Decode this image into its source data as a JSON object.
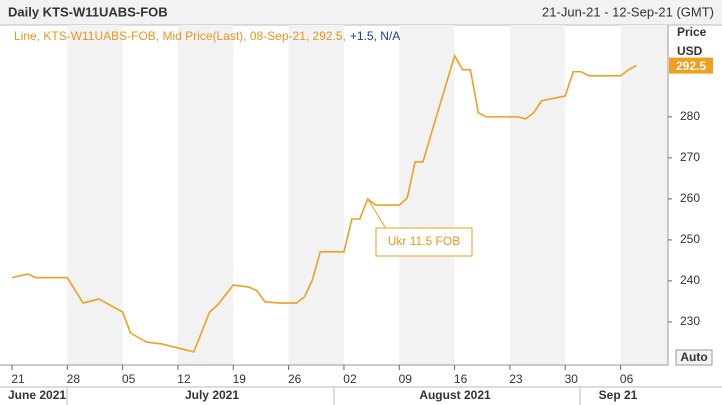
{
  "chart_data": {
    "type": "line",
    "title": "Daily KTS-W11UABS-FOB",
    "date_range": "21-Jun-21 - 12-Sep-21 (GMT)",
    "legend_text": "Line, KTS-W11UABS-FOB, Mid Price(Last), 08-Sep-21, 292.5,",
    "legend_change": "+1.5, N/A",
    "y_axis_label": "Price",
    "y_axis_unit": "USD",
    "annotation": "Ukr 11.5 FOB",
    "auto_button": "Auto",
    "x": [
      "2021-06-21",
      "2021-06-23",
      "2021-06-24",
      "2021-06-28",
      "2021-06-30",
      "2021-07-02",
      "2021-07-05",
      "2021-07-06",
      "2021-07-08",
      "2021-07-10",
      "2021-07-14",
      "2021-07-16",
      "2021-07-17",
      "2021-07-19",
      "2021-07-21",
      "2021-07-22",
      "2021-07-23",
      "2021-07-25",
      "2021-07-27",
      "2021-07-28",
      "2021-07-29",
      "2021-07-30",
      "2021-08-02",
      "2021-08-03",
      "2021-08-04",
      "2021-08-05",
      "2021-08-06",
      "2021-08-09",
      "2021-08-10",
      "2021-08-11",
      "2021-08-12",
      "2021-08-13",
      "2021-08-16",
      "2021-08-17",
      "2021-08-18",
      "2021-08-19",
      "2021-08-20",
      "2021-08-24",
      "2021-08-25",
      "2021-08-26",
      "2021-08-27",
      "2021-08-30",
      "2021-08-31",
      "2021-09-01",
      "2021-09-02",
      "2021-09-06",
      "2021-09-07",
      "2021-09-08"
    ],
    "series": [
      {
        "name": "KTS-W11UABS-FOB",
        "color": "#f0a01e",
        "values": [
          240.8,
          241.7,
          240.8,
          240.8,
          234.6,
          235.6,
          232.4,
          227.3,
          225.1,
          224.6,
          222.7,
          232.4,
          234.1,
          239.0,
          238.5,
          237.6,
          234.9,
          234.6,
          234.6,
          236.1,
          240.2,
          247.1,
          247.1,
          255.1,
          255.1,
          260.0,
          258.5,
          258.5,
          260.2,
          269.0,
          269.0,
          275.6,
          294.9,
          291.5,
          291.5,
          281.0,
          280.0,
          280.0,
          279.5,
          281.0,
          283.9,
          285.1,
          291.0,
          291.0,
          290.0,
          290.0,
          291.5,
          292.5
        ]
      }
    ],
    "xlim": [
      "2021-06-21",
      "2021-09-12"
    ],
    "xticks": [
      {
        "value": "2021-06-21",
        "label": "21"
      },
      {
        "value": "2021-06-28",
        "label": "28"
      },
      {
        "value": "2021-07-05",
        "label": "05"
      },
      {
        "value": "2021-07-12",
        "label": "12"
      },
      {
        "value": "2021-07-19",
        "label": "19"
      },
      {
        "value": "2021-07-26",
        "label": "26"
      },
      {
        "value": "2021-08-02",
        "label": "02"
      },
      {
        "value": "2021-08-09",
        "label": "09"
      },
      {
        "value": "2021-08-16",
        "label": "16"
      },
      {
        "value": "2021-08-23",
        "label": "23"
      },
      {
        "value": "2021-08-30",
        "label": "30"
      },
      {
        "value": "2021-09-06",
        "label": "06"
      }
    ],
    "months": [
      "June 2021",
      "July 2021",
      "August 2021",
      "Sep 21"
    ],
    "ylim": [
      219.5,
      302.4
    ],
    "yticks": [
      230,
      240,
      250,
      260,
      270,
      280
    ]
  }
}
